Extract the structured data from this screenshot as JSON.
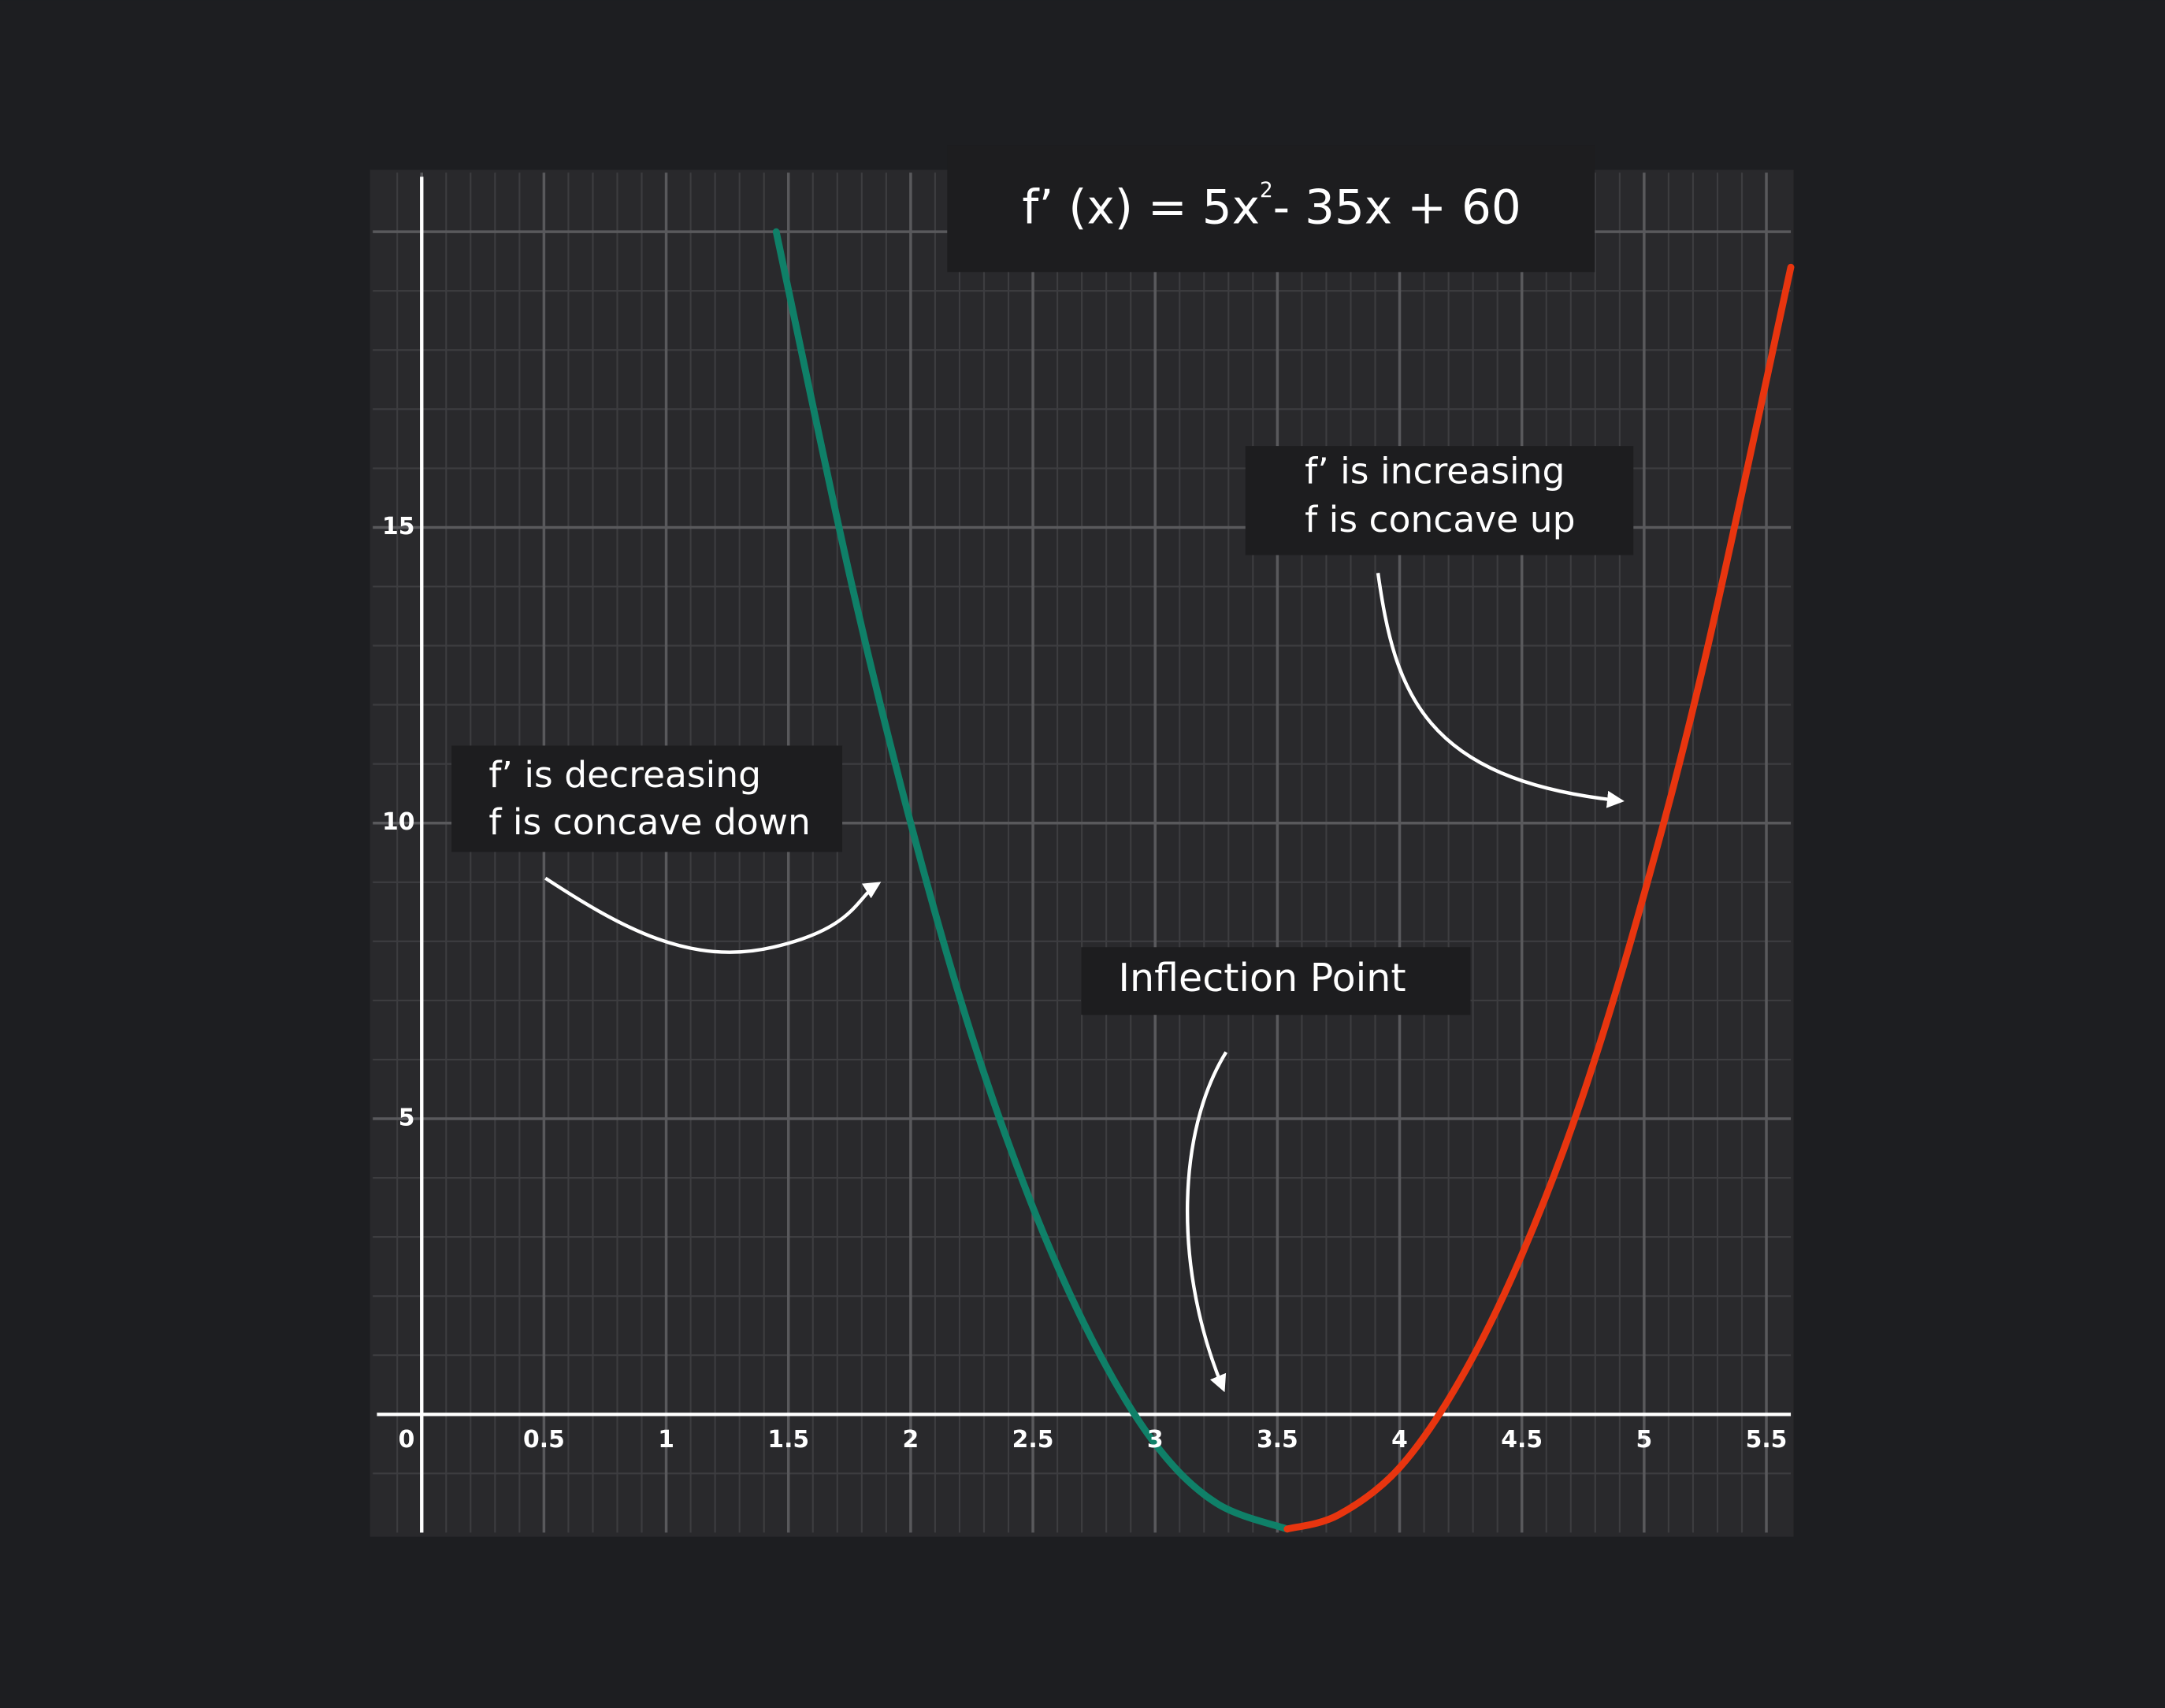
{
  "chart_data": {
    "type": "line",
    "title": [
      "f’ (x) = 5x",
      "2",
      "- 35x + 60"
    ],
    "xlim": [
      -0.2,
      5.6
    ],
    "ylim": [
      -2,
      21
    ],
    "xticks": [
      0,
      0.5,
      1,
      1.5,
      2,
      2.5,
      3,
      3.5,
      4,
      4.5,
      5,
      5.5
    ],
    "yticks": [
      5,
      10,
      15,
      {
        "value": 20,
        "label": null
      }
    ],
    "xminorticks": [
      -0.1,
      0.1,
      0.2,
      0.3,
      0.4,
      0.6,
      0.7,
      0.8,
      0.9,
      1.1,
      1.2,
      1.3,
      1.4,
      1.6,
      1.7,
      1.8,
      1.9,
      2.1,
      2.2,
      2.3,
      2.4,
      2.6,
      2.7,
      2.8,
      2.9,
      3.1,
      3.2,
      3.3,
      3.4,
      3.6,
      3.7,
      3.8,
      3.9,
      4.1,
      4.2,
      4.3,
      4.4,
      4.6,
      4.7,
      4.8,
      4.9,
      5.1,
      5.2,
      5.3,
      5.4
    ],
    "yminorticks": [
      -1,
      1,
      2,
      3,
      4,
      6,
      7,
      8,
      9,
      11,
      12,
      13,
      14,
      16,
      17,
      18,
      19
    ],
    "grid": true,
    "series": [
      {
        "color": "#0f8068",
        "x": [
          1.45,
          1.75,
          2,
          2.25,
          2.5,
          2.75,
          3,
          3.25,
          3.54
        ],
        "values": [
          20.0,
          14.2,
          10.0,
          6.4,
          3.5,
          1.2,
          -0.5,
          -1.5,
          -1.94
        ]
      },
      {
        "color": "#e8350f",
        "x": [
          3.54,
          3.75,
          4,
          4.25,
          4.5,
          4.75,
          5,
          5.25,
          5.6
        ],
        "values": [
          -1.94,
          -1.7,
          -0.9,
          0.6,
          2.7,
          5.4,
          8.8,
          12.8,
          19.4
        ]
      }
    ],
    "annotations": [
      {
        "lines": [
          "f’ is decreasing",
          "f is concave down"
        ]
      },
      {
        "lines": [
          "f’ is increasing",
          "f is concave up"
        ]
      },
      {
        "lines": [
          "Inflection Point"
        ]
      }
    ]
  }
}
